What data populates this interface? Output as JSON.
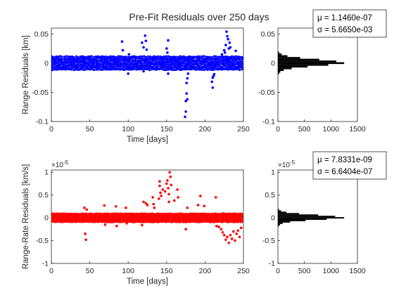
{
  "figure": {
    "title": "Pre-Fit Residuals over 250 days"
  },
  "chart_data": [
    {
      "type": "scatter",
      "xlabel": "Time [days]",
      "ylabel": "Range Residuals [km]",
      "xlim": [
        0,
        250
      ],
      "ylim": [
        -0.1,
        0.06
      ],
      "xticks": [
        "0",
        "50",
        "100",
        "150",
        "200",
        "250"
      ],
      "yticks": [
        "-0.1",
        "-0.05",
        "0",
        "0.05"
      ],
      "color": "#0000ff",
      "grid": false,
      "band": [
        -0.011,
        0.011
      ],
      "outliers": {
        "x": [
          92,
          93,
          100,
          101,
          118,
          120,
          120,
          122,
          123,
          124,
          150,
          151,
          152,
          152,
          174,
          175,
          175,
          176,
          176,
          177,
          177,
          178,
          209,
          210,
          210,
          211,
          212,
          222,
          225,
          226,
          227,
          228,
          229,
          230,
          231,
          232,
          233,
          240
        ],
        "y": [
          0.037,
          0.022,
          -0.018,
          0.015,
          0.035,
          0.027,
          -0.014,
          0.047,
          0.038,
          0.023,
          0.025,
          0.018,
          0.039,
          -0.018,
          -0.092,
          -0.083,
          -0.065,
          -0.052,
          -0.034,
          -0.026,
          -0.062,
          -0.018,
          -0.032,
          -0.042,
          -0.025,
          -0.022,
          -0.019,
          0.015,
          0.022,
          0.018,
          0.031,
          0.054,
          0.046,
          0.041,
          0.025,
          0.035,
          0.027,
          0.021
        ]
      }
    },
    {
      "type": "bar",
      "orientation": "horizontal",
      "xlim": [
        0,
        1500
      ],
      "ylim": [
        -0.1,
        0.06
      ],
      "xticks": [
        "0",
        "500",
        "1000",
        "1500"
      ],
      "yticks": [
        "-0.1",
        "-0.05",
        "0",
        "0.05"
      ],
      "color": "#000000",
      "mu": "μ = 1.1460e-07",
      "sigma": "σ = 5.6650e-03",
      "bins": {
        "y": [
          -0.018,
          -0.015,
          -0.012,
          -0.009,
          -0.006,
          -0.003,
          0,
          0.003,
          0.006,
          0.009,
          0.012,
          0.015,
          0.018
        ],
        "counts": [
          20,
          45,
          110,
          260,
          560,
          950,
          1250,
          1100,
          780,
          420,
          180,
          70,
          25
        ]
      }
    },
    {
      "type": "scatter",
      "xlabel": "Time [days]",
      "ylabel": "Range-Rate Residuals [km/s]",
      "exponent": "×10",
      "exponent_power": "-5",
      "xlim": [
        0,
        250
      ],
      "ylim": [
        -1,
        1.05
      ],
      "xticks": [
        "0",
        "50",
        "100",
        "150",
        "200",
        "250"
      ],
      "yticks": [
        "-1",
        "-0.5",
        "0",
        "0.5",
        "1"
      ],
      "color": "#ff0000",
      "grid": false,
      "band": [
        -0.09,
        0.09
      ],
      "outliers": {
        "x": [
          43,
          44,
          45,
          46,
          69,
          70,
          84,
          85,
          97,
          98,
          118,
          120,
          123,
          125,
          132,
          133,
          134,
          140,
          141,
          141,
          142,
          143,
          145,
          148,
          150,
          151,
          152,
          153,
          153,
          154,
          155,
          156,
          160,
          164,
          165,
          175,
          177,
          191,
          194,
          199,
          214,
          215,
          218,
          221,
          223,
          225,
          227,
          229,
          231,
          233,
          235,
          237,
          239,
          241,
          243,
          245,
          247
        ],
        "y": [
          0.22,
          -0.35,
          -0.48,
          0.18,
          0.27,
          -0.15,
          0.25,
          -0.18,
          0.22,
          -0.12,
          -0.16,
          0.35,
          0.32,
          0.28,
          0.45,
          0.3,
          0.22,
          0.42,
          0.8,
          0.7,
          0.55,
          0.48,
          0.62,
          0.58,
          0.75,
          0.82,
          0.65,
          0.52,
          0.35,
          1.0,
          0.9,
          0.72,
          0.38,
          0.62,
          0.45,
          -0.25,
          0.22,
          0.28,
          0.48,
          0.26,
          0.45,
          -0.18,
          -0.2,
          -0.25,
          -0.32,
          -0.38,
          -0.48,
          -0.42,
          -0.55,
          -0.38,
          -0.46,
          -0.3,
          -0.5,
          -0.35,
          -0.28,
          -0.42,
          -0.22
        ]
      }
    },
    {
      "type": "bar",
      "orientation": "horizontal",
      "exponent": "×10",
      "exponent_power": "-5",
      "xlim": [
        0,
        1500
      ],
      "ylim": [
        -1,
        1.05
      ],
      "xticks": [
        "0",
        "500",
        "1000",
        "1500"
      ],
      "yticks": [
        "-1",
        "-0.5",
        "0",
        "0.5",
        "1"
      ],
      "color": "#000000",
      "mu": "μ = 7.8331e-09",
      "sigma": "σ = 6.6404e-07",
      "bins": {
        "y": [
          -0.18,
          -0.15,
          -0.12,
          -0.09,
          -0.06,
          -0.03,
          0,
          0.03,
          0.06,
          0.09,
          0.12,
          0.15,
          0.18
        ],
        "counts": [
          15,
          40,
          90,
          230,
          520,
          920,
          1250,
          1080,
          760,
          400,
          160,
          60,
          20
        ]
      }
    }
  ]
}
